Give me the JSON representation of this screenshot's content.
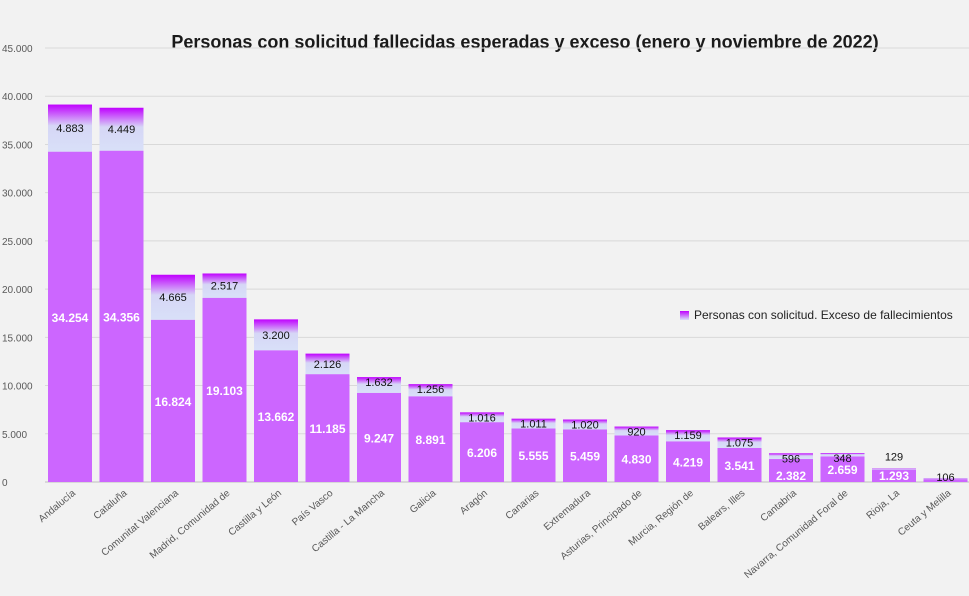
{
  "chart_data": {
    "type": "bar",
    "stacked": true,
    "title": "Personas con solicitud fallecidas  esperadas y  exceso (enero y noviembre de 2022)",
    "xlabel": "",
    "ylabel": "",
    "ylim": [
      0,
      45000
    ],
    "yticks": [
      "0",
      "5.000",
      "10.000",
      "15.000",
      "20.000",
      "25.000",
      "30.000",
      "35.000",
      "40.000",
      "45.000"
    ],
    "grid": true,
    "legend_position": "right",
    "categories": [
      "Andalucía",
      "Cataluña",
      "Comunitat Valenciana",
      "Madrid, Comunidad de",
      "Castilla y León",
      "País Vasco",
      "Castilla - La Mancha",
      "Galicia",
      "Aragón",
      "Canarias",
      "Extremadura",
      "Asturias, Principado de",
      "Murcia, Región de",
      "Balears, Illes",
      "Cantabria",
      "Navarra, Comunidad Foral de",
      "Rioja, La",
      "Ceuta y Melilla"
    ],
    "series": [
      {
        "values": [
          34254,
          34356,
          16824,
          19103,
          13662,
          11185,
          9247,
          8891,
          6206,
          5555,
          5459,
          4830,
          4219,
          3541,
          2382,
          2659,
          1293,
          300
        ],
        "labels": [
          "34.254",
          "34.356",
          "16.824",
          "19.103",
          "13.662",
          "11.185",
          "9.247",
          "8.891",
          "6.206",
          "5.555",
          "5.459",
          "4.830",
          "4.219",
          "3.541",
          "2.382",
          "2.659",
          "1.293",
          ""
        ],
        "color": "#cc66ff"
      },
      {
        "name": "Personas con solicitud. Exceso de fallecimientos",
        "values": [
          4883,
          4449,
          4665,
          2517,
          3200,
          2126,
          1632,
          1256,
          1016,
          1011,
          1020,
          920,
          1159,
          1075,
          596,
          348,
          129,
          106
        ],
        "labels": [
          "4.883",
          "4.449",
          "4.665",
          "2.517",
          "3.200",
          "2.126",
          "1.632",
          "1.256",
          "1.016",
          "1.011",
          "1.020",
          "920",
          "1.159",
          "1.075",
          "596",
          "348",
          "129",
          "106"
        ],
        "color_top": "#c000ff",
        "color_bottom": "#d8e0f8"
      }
    ]
  }
}
